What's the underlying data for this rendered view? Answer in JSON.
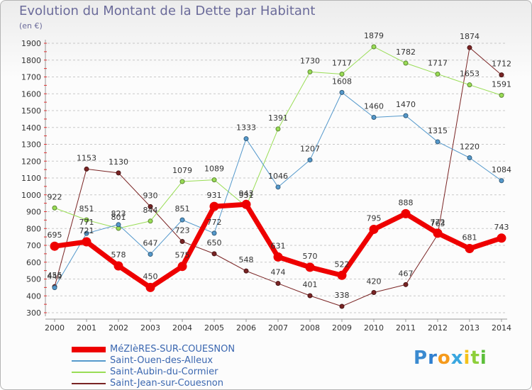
{
  "header": {
    "title": "Evolution du Montant de la Dette par Habitant",
    "subtitle": "(en €)"
  },
  "brand": {
    "logo_letters": [
      "P",
      "r",
      "o",
      "x",
      "i",
      "t",
      "i"
    ],
    "logo_colors": [
      "#3a8ad0",
      "#2f7fd0",
      "#f59a1c",
      "#3aa7e0",
      "#f4c21a",
      "#8ecf3a",
      "#5cbf3a"
    ]
  },
  "chart_data": {
    "type": "line",
    "title": "Evolution du Montant de la Dette par Habitant",
    "subtitle": "(en €)",
    "xlabel": "",
    "ylabel": "",
    "x": [
      "2000",
      "2001",
      "2002",
      "2003",
      "2004",
      "2005",
      "2006",
      "2007",
      "2008",
      "2009",
      "2010",
      "2011",
      "2012",
      "2013",
      "2014"
    ],
    "ylim": [
      300,
      1900
    ],
    "yticks": [
      300,
      400,
      500,
      600,
      700,
      800,
      900,
      1000,
      1100,
      1200,
      1300,
      1400,
      1500,
      1600,
      1700,
      1800,
      1900
    ],
    "grid": "horizontal dashed",
    "legend_position": "bottom-left",
    "series": [
      {
        "name": "Saint-Jean-sur-Couesnon",
        "color": "#7a2424",
        "width": 1,
        "values": [
          455,
          1153,
          1130,
          930,
          723,
          650,
          548,
          474,
          401,
          338,
          420,
          467,
          763,
          1874,
          1712
        ]
      },
      {
        "name": "Saint-Aubin-du-Cormier",
        "color": "#99dd55",
        "width": 1,
        "values": [
          922,
          851,
          801,
          844,
          1079,
          1089,
          931,
          1391,
          1730,
          1717,
          1879,
          1782,
          1717,
          1653,
          1591
        ]
      },
      {
        "name": "Saint-Ouen-des-Alleux",
        "color": "#5599cc",
        "width": 1,
        "values": [
          449,
          771,
          823,
          647,
          851,
          772,
          1333,
          1046,
          1207,
          1608,
          1460,
          1470,
          1315,
          1220,
          1084
        ]
      },
      {
        "name": "MéZIèRES-SUR-COUESNON",
        "color": "#ee0000",
        "width": 7,
        "values": [
          695,
          721,
          578,
          450,
          575,
          931,
          943,
          631,
          570,
          522,
          795,
          888,
          772,
          681,
          743
        ]
      }
    ]
  }
}
